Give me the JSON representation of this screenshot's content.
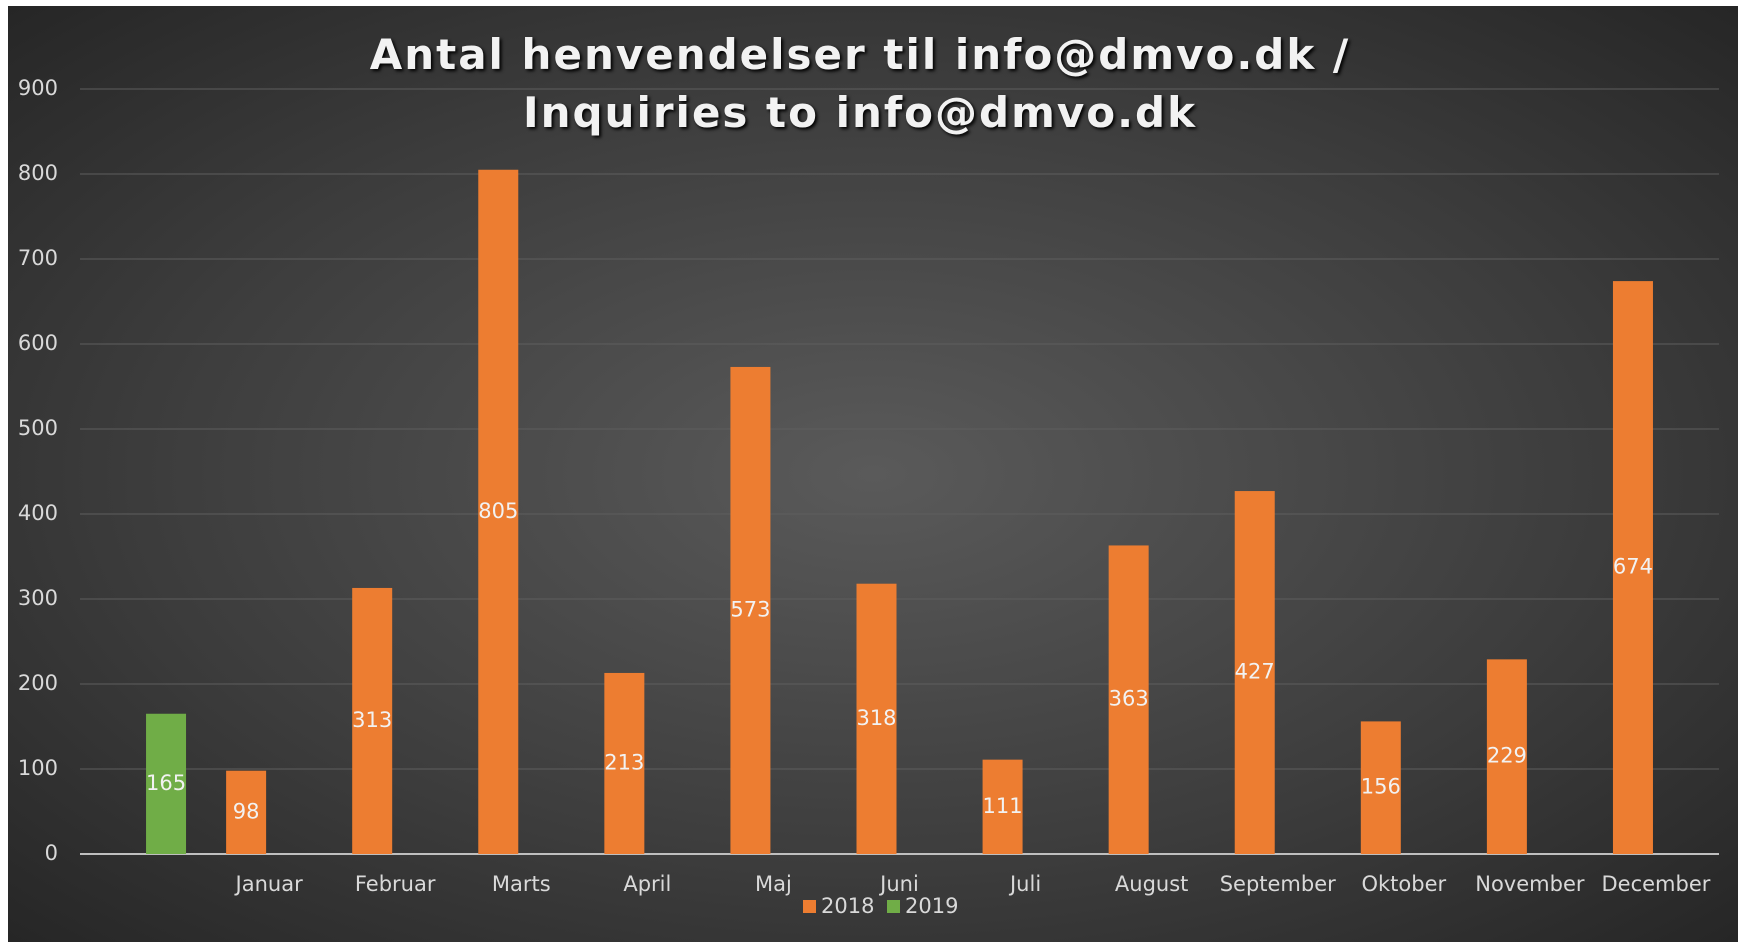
{
  "chart_data": {
    "type": "bar",
    "title": "Antal henvendelser til info@dmvo.dk / Inquiries to info@dmvo.dk",
    "categories": [
      null,
      "Januar",
      "Februar",
      "Marts",
      "April",
      "Maj",
      "Juni",
      "Juli",
      "August",
      "September",
      "Oktober",
      "November",
      "December"
    ],
    "series": [
      {
        "name": "2018",
        "color": "#ed7d31",
        "values": [
          null,
          98,
          313,
          805,
          213,
          573,
          318,
          111,
          363,
          427,
          156,
          229,
          674
        ]
      },
      {
        "name": "2019",
        "color": "#70ad47",
        "values": [
          165,
          null,
          null,
          null,
          null,
          null,
          null,
          null,
          null,
          null,
          null,
          null,
          null
        ]
      }
    ],
    "ylim": [
      0,
      900
    ],
    "yticks": [
      0,
      100,
      200,
      300,
      400,
      500,
      600,
      700,
      800,
      900
    ],
    "grid": true,
    "legend": "bottom",
    "data_labels": true
  }
}
